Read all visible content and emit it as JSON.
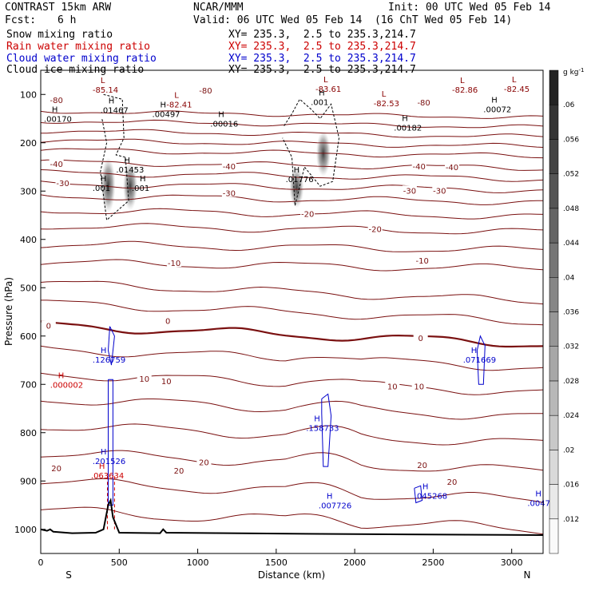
{
  "header": {
    "model": "CONTRAST 15km ARW",
    "org": "NCAR/MMM",
    "init": "Init: 00 UTC Wed 05 Feb 14",
    "fcst_label": "Fcst:",
    "fcst_value": "6 h",
    "valid": "Valid: 06 UTC Wed 05 Feb 14  (16 ChT Wed 05 Feb 14)"
  },
  "fields": [
    {
      "name": "Snow mixing ratio",
      "xy": "",
      "color": "#000000"
    },
    {
      "name": "Rain water mixing ratio",
      "xy": "XY= 235.3,  2.5 to 235.3,214.7",
      "color": "#cc0000"
    },
    {
      "name": "Cloud water mixing ratio",
      "xy": "XY= 235.3,  2.5 to 235.3,214.7",
      "color": "#0000cc"
    },
    {
      "name": "Cloud ice mixing ratio",
      "xy": "XY= 235.3,  2.5 to 235.3,214.7",
      "color": "#000000"
    }
  ],
  "snow_xy": "XY= 235.3,  2.5 to 235.3,214.7",
  "chart_data": {
    "type": "contour",
    "xlabel": "Distance (km)",
    "ylabel": "Pressure (hPa)",
    "xlim": [
      0,
      3200
    ],
    "ylim": [
      1050,
      50
    ],
    "x_ticks": [
      0,
      500,
      1000,
      1500,
      2000,
      2500,
      3000
    ],
    "y_ticks": [
      100,
      200,
      300,
      400,
      500,
      600,
      700,
      800,
      900,
      1000
    ],
    "x_end_labels": {
      "left": "S",
      "right": "N"
    },
    "colorbar": {
      "units": "g kg",
      "units_exp": "-1",
      "levels": [
        ".012",
        ".016",
        ".02",
        ".024",
        ".028",
        ".032",
        ".036",
        ".04",
        ".044",
        ".048",
        ".052",
        ".056",
        ".06"
      ]
    },
    "temperature_labels": [
      {
        "text": "-80",
        "x": 100,
        "p": 113
      },
      {
        "text": "-80",
        "x": 1050,
        "p": 93
      },
      {
        "text": "-80",
        "x": 2440,
        "p": 118
      },
      {
        "text": "-40",
        "x": 100,
        "p": 245
      },
      {
        "text": "-40",
        "x": 1200,
        "p": 250
      },
      {
        "text": "-40",
        "x": 2410,
        "p": 250
      },
      {
        "text": "-40",
        "x": 2620,
        "p": 252
      },
      {
        "text": "-30",
        "x": 140,
        "p": 285
      },
      {
        "text": "-30",
        "x": 1200,
        "p": 305
      },
      {
        "text": "-30",
        "x": 2350,
        "p": 300
      },
      {
        "text": "-30",
        "x": 2540,
        "p": 300
      },
      {
        "text": "-20",
        "x": 1700,
        "p": 348
      },
      {
        "text": "-20",
        "x": 2130,
        "p": 380
      },
      {
        "text": "-10",
        "x": 850,
        "p": 450
      },
      {
        "text": "-10",
        "x": 2430,
        "p": 445
      },
      {
        "text": "0",
        "x": 50,
        "p": 580
      },
      {
        "text": "0",
        "x": 810,
        "p": 570
      },
      {
        "text": "0",
        "x": 2420,
        "p": 605
      },
      {
        "text": "10",
        "x": 660,
        "p": 690
      },
      {
        "text": "10",
        "x": 800,
        "p": 695
      },
      {
        "text": "10",
        "x": 2240,
        "p": 705
      },
      {
        "text": "10",
        "x": 2410,
        "p": 705
      },
      {
        "text": "20",
        "x": 100,
        "p": 875
      },
      {
        "text": "20",
        "x": 880,
        "p": 880
      },
      {
        "text": "20",
        "x": 1040,
        "p": 862
      },
      {
        "text": "20",
        "x": 2430,
        "p": 868
      },
      {
        "text": "20",
        "x": 2620,
        "p": 903
      }
    ],
    "extrema": [
      {
        "mark": "L",
        "value": "-85.14",
        "x": 330,
        "p": 90,
        "color": "#880000"
      },
      {
        "mark": "L",
        "value": "-82.41",
        "x": 800,
        "p": 120,
        "color": "#880000"
      },
      {
        "mark": "L",
        "value": "-83.61",
        "x": 1750,
        "p": 88,
        "color": "#880000"
      },
      {
        "mark": "L",
        "value": "-82.53",
        "x": 2120,
        "p": 118,
        "color": "#880000"
      },
      {
        "mark": "L",
        "value": "-82.86",
        "x": 2620,
        "p": 90,
        "color": "#880000"
      },
      {
        "mark": "L",
        "value": "-82.45",
        "x": 2950,
        "p": 88,
        "color": "#880000"
      },
      {
        "mark": "H",
        "value": ".00170",
        "x": 20,
        "p": 150,
        "color": "#000000"
      },
      {
        "mark": "H",
        "value": ".01467",
        "x": 380,
        "p": 132,
        "color": "#000000"
      },
      {
        "mark": "H",
        "value": ".00497",
        "x": 710,
        "p": 140,
        "color": "#000000"
      },
      {
        "mark": "H",
        "value": ".00016",
        "x": 1080,
        "p": 160,
        "color": "#000000"
      },
      {
        "mark": "H",
        "value": ".001",
        "x": 1720,
        "p": 115,
        "color": "#000000"
      },
      {
        "mark": "H",
        "value": ".00182",
        "x": 2250,
        "p": 168,
        "color": "#000000"
      },
      {
        "mark": "H",
        "value": ".00072",
        "x": 2820,
        "p": 130,
        "color": "#000000"
      },
      {
        "mark": "H",
        "value": ".01453",
        "x": 480,
        "p": 255,
        "color": "#000000"
      },
      {
        "mark": "H",
        "value": ".001",
        "x": 330,
        "p": 293,
        "color": "#000000"
      },
      {
        "mark": "H",
        "value": ".001",
        "x": 580,
        "p": 293,
        "color": "#000000"
      },
      {
        "mark": "H",
        "value": ".01776",
        "x": 1560,
        "p": 275,
        "color": "#000000"
      },
      {
        "mark": "H",
        "value": ".126759",
        "x": 330,
        "p": 648,
        "color": "#0000cc"
      },
      {
        "mark": "H",
        "value": ".071669",
        "x": 2690,
        "p": 648,
        "color": "#0000cc"
      },
      {
        "mark": "H",
        "value": ".000002",
        "x": 60,
        "p": 700,
        "color": "#cc0000"
      },
      {
        "mark": "H",
        "value": ".158733",
        "x": 1690,
        "p": 790,
        "color": "#0000cc"
      },
      {
        "mark": "H",
        "value": ".201526",
        "x": 330,
        "p": 858,
        "color": "#0000cc"
      },
      {
        "mark": "H",
        "value": ".063634",
        "x": 320,
        "p": 888,
        "color": "#cc0000"
      },
      {
        "mark": "H",
        "value": ".007726",
        "x": 1770,
        "p": 950,
        "color": "#0000cc"
      },
      {
        "mark": "H",
        "value": ".045268",
        "x": 2380,
        "p": 930,
        "color": "#0000cc"
      },
      {
        "mark": "H",
        "value": ".0047",
        "x": 3100,
        "p": 945,
        "color": "#0000cc"
      }
    ],
    "temperature_isotherms_hpa_at_left": [
      135,
      155,
      175,
      195,
      215,
      240,
      262,
      285,
      310,
      340,
      372,
      410,
      448,
      490,
      532,
      578,
      627,
      678,
      730,
      785,
      842,
      902,
      962
    ],
    "ice_blobs": [
      {
        "x": 430,
        "p_top": 230,
        "p_bottom": 345,
        "peak": ".06"
      },
      {
        "x": 570,
        "p_top": 240,
        "p_bottom": 340,
        "peak": ".04"
      },
      {
        "x": 1630,
        "p_top": 250,
        "p_bottom": 335,
        "peak": ".06"
      },
      {
        "x": 1800,
        "p_top": 175,
        "p_bottom": 270,
        "peak": ".032"
      }
    ],
    "terrain": [
      [
        0,
        1000
      ],
      [
        40,
        1003
      ],
      [
        60,
        1000
      ],
      [
        80,
        1005
      ],
      [
        200,
        1008
      ],
      [
        350,
        1007
      ],
      [
        400,
        1000
      ],
      [
        430,
        950
      ],
      [
        445,
        940
      ],
      [
        460,
        975
      ],
      [
        500,
        1007
      ],
      [
        760,
        1008
      ],
      [
        780,
        1000
      ],
      [
        800,
        1007
      ],
      [
        1200,
        1008
      ],
      [
        2000,
        1010
      ],
      [
        3200,
        1012
      ]
    ]
  }
}
